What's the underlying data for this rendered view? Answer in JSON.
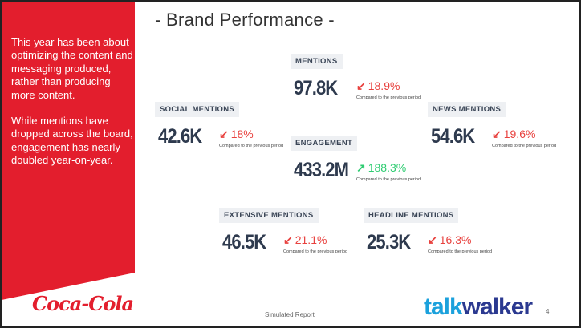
{
  "title": "- Brand Performance -",
  "sidebar": {
    "paragraphs": [
      "This year has been about optimizing the content and messaging produced, rather than producing more content.",
      "While mentions have dropped across the board, engagement has nearly doubled year-on-year."
    ],
    "color": "#e31e2d"
  },
  "metrics": [
    {
      "label": "MENTIONS",
      "value": "97.8K",
      "change": "18.9%",
      "direction": "down",
      "caption": "Compared to the previous period"
    },
    {
      "label": "SOCIAL MENTIONS",
      "value": "42.6K",
      "change": "18%",
      "direction": "down",
      "caption": "Compared to the previous period"
    },
    {
      "label": "NEWS MENTIONS",
      "value": "54.6K",
      "change": "19.6%",
      "direction": "down",
      "caption": "Compared to the previous period"
    },
    {
      "label": "ENGAGEMENT",
      "value": "433.2M",
      "change": "188.3%",
      "direction": "up",
      "caption": "Compared to the previous period"
    },
    {
      "label": "EXTENSIVE MENTIONS",
      "value": "46.5K",
      "change": "21.1%",
      "direction": "down",
      "caption": "Compared to the previous period"
    },
    {
      "label": "HEADLINE MENTIONS",
      "value": "25.3K",
      "change": "16.3%",
      "direction": "down",
      "caption": "Compared to the previous period"
    }
  ],
  "colors": {
    "down": "#e8413e",
    "up": "#2ecc71"
  },
  "footer": {
    "text": "Simulated Report",
    "page": "4",
    "logo_left": "Coca-Cola",
    "logo_right_a": "talk",
    "logo_right_b": "walker"
  }
}
